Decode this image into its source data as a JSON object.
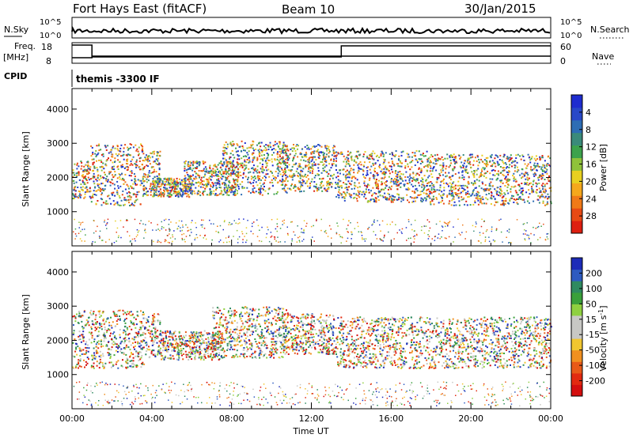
{
  "header": {
    "station": "Fort Hays East (fitACF)",
    "beam": "Beam 10",
    "date": "30/Jan/2015"
  },
  "panels": {
    "nsky_label": "N.Sky",
    "nsearch_label": "N.Search",
    "freq_label": "Freq.",
    "freq_unit": "[MHz]",
    "nave_label": "Nave",
    "cpid_label": "CPID",
    "cpid_value": "themis -3300 IF",
    "nsky_ticks": [
      "10^5",
      "10^0"
    ],
    "nsearch_ticks": [
      "10^5",
      "10^0"
    ],
    "freq_ticks": [
      "18",
      "8"
    ],
    "nave_ticks": [
      "60",
      "0"
    ]
  },
  "chart_data": [
    {
      "type": "heatmap",
      "name": "power",
      "ylabel": "Slant Range [km]",
      "yticks": [
        1000,
        2000,
        3000,
        4000
      ],
      "ylim": [
        0,
        4600
      ],
      "xlim": [
        0,
        24
      ],
      "colorbar_label": "Power [dB]",
      "colorbar_ticks": [
        "4",
        "8",
        "12",
        "16",
        "20",
        "24",
        "28"
      ],
      "colorbar_colors": [
        "#1e2ccf",
        "#2848c8",
        "#2d6db4",
        "#3a8a7a",
        "#3da24c",
        "#8fc23a",
        "#e8d020",
        "#f5a81c",
        "#f07a18",
        "#e84a14",
        "#dd1f10"
      ],
      "scatter_bands": [
        {
          "t0": 0.0,
          "t1": 0.9,
          "r0": 1400,
          "r1": 2500
        },
        {
          "t0": 0.9,
          "t1": 3.6,
          "r0": 1200,
          "r1": 3000
        },
        {
          "t0": 3.5,
          "t1": 4.4,
          "r0": 1500,
          "r1": 2800
        },
        {
          "t0": 4.0,
          "t1": 6.0,
          "r0": 1450,
          "r1": 2000
        },
        {
          "t0": 5.6,
          "t1": 8.3,
          "r0": 1500,
          "r1": 2500
        },
        {
          "t0": 7.5,
          "t1": 10.8,
          "r0": 1500,
          "r1": 3100
        },
        {
          "t0": 10.5,
          "t1": 13.2,
          "r0": 1600,
          "r1": 3000
        },
        {
          "t0": 13.2,
          "t1": 17.8,
          "r0": 1300,
          "r1": 2800
        },
        {
          "t0": 17.8,
          "t1": 24.0,
          "r0": 1200,
          "r1": 2700
        }
      ]
    },
    {
      "type": "heatmap",
      "name": "velocity",
      "ylabel": "Slant Range [km]",
      "yticks": [
        1000,
        2000,
        3000,
        4000
      ],
      "ylim": [
        0,
        4600
      ],
      "xlim": [
        0,
        24
      ],
      "xticks": [
        "00:00",
        "04:00",
        "08:00",
        "12:00",
        "16:00",
        "20:00",
        "00:00"
      ],
      "xtick_hours": [
        0,
        4,
        8,
        12,
        16,
        20,
        24
      ],
      "xlabel": "Time UT",
      "colorbar_label": "Velocity [m s",
      "colorbar_label_exp": "-1",
      "colorbar_label_end": "]",
      "colorbar_ticks": [
        "200",
        "100",
        "50",
        "15",
        "-15",
        "-50",
        "-100",
        "-200"
      ],
      "colorbar_colors": [
        "#1d2bb8",
        "#2e5bc0",
        "#2f8a60",
        "#3aa03a",
        "#8fd040",
        "#c8c8c4",
        "#c8c8c4",
        "#f1c630",
        "#f19020",
        "#e85a18",
        "#e22a10",
        "#d40e0e"
      ],
      "scatter_bands": [
        {
          "t0": 0.0,
          "t1": 3.6,
          "r0": 1200,
          "r1": 2900
        },
        {
          "t0": 3.6,
          "t1": 4.4,
          "r0": 1500,
          "r1": 2800
        },
        {
          "t0": 4.4,
          "t1": 7.5,
          "r0": 1450,
          "r1": 2300
        },
        {
          "t0": 7.0,
          "t1": 10.8,
          "r0": 1500,
          "r1": 3000
        },
        {
          "t0": 10.5,
          "t1": 13.2,
          "r0": 1600,
          "r1": 2800
        },
        {
          "t0": 13.2,
          "t1": 24.0,
          "r0": 1200,
          "r1": 2700
        }
      ]
    }
  ]
}
